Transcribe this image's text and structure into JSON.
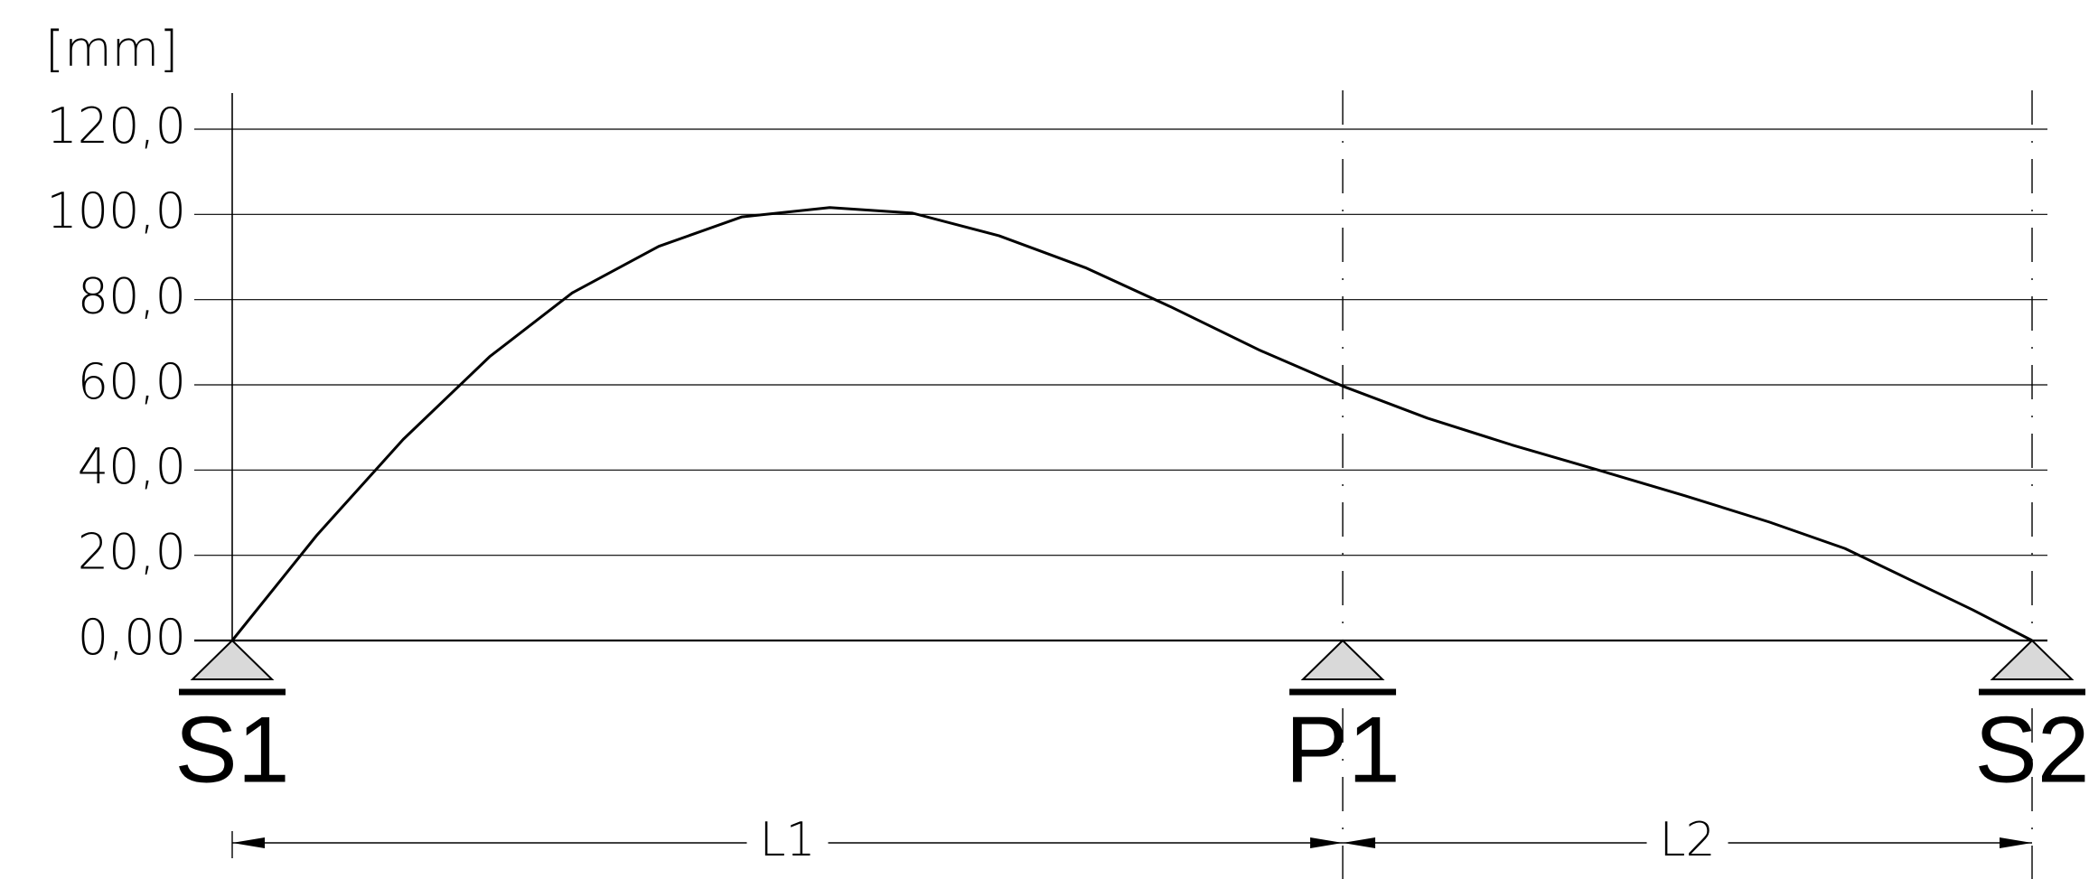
{
  "chart_data": {
    "type": "line",
    "y_unit": "[mm]",
    "x": [
      0,
      4.7,
      9.5,
      14.3,
      18.9,
      23.7,
      28.3,
      33.2,
      37.8,
      42.6,
      47.4,
      52.1,
      57.1,
      61.7,
      66.4,
      71.1,
      75.9,
      80.7,
      85.4,
      89.6,
      93.0,
      96.7,
      100
    ],
    "values": [
      0,
      24.7,
      47.2,
      66.6,
      81.6,
      92.5,
      99.4,
      101.6,
      100.3,
      95,
      87.5,
      78.4,
      68.1,
      59.7,
      52.2,
      45.9,
      40,
      34,
      27.8,
      21.6,
      14.7,
      7.2,
      0
    ],
    "color": "#000000",
    "xlim": [
      0,
      100
    ],
    "ylim": [
      0,
      120
    ],
    "yticks": [
      {
        "value": 0,
        "label": "0,00"
      },
      {
        "value": 20,
        "label": "20,0"
      },
      {
        "value": 40,
        "label": "40,0"
      },
      {
        "value": 60,
        "label": "60,0"
      },
      {
        "value": 80,
        "label": "80,0"
      },
      {
        "value": 100,
        "label": "100,0"
      },
      {
        "value": 120,
        "label": "120,0"
      }
    ],
    "grid": true,
    "supports": [
      {
        "label": "S1",
        "x": 0
      },
      {
        "label": "P1",
        "x": 61.7
      },
      {
        "label": "S2",
        "x": 100
      }
    ],
    "spans": [
      "L1",
      "L2"
    ]
  }
}
